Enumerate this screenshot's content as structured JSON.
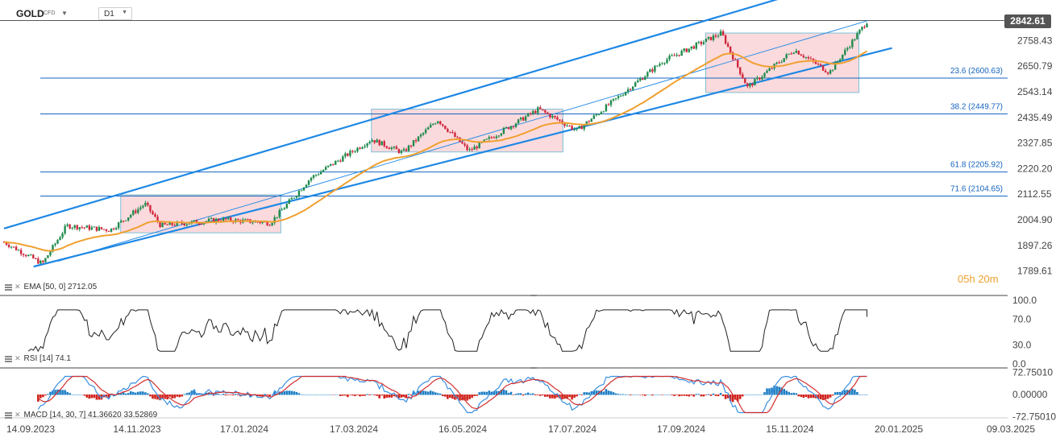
{
  "header": {
    "symbol": "GOLD",
    "instrument_type": "CFD",
    "timeframe": "D1"
  },
  "last_price": "2842.61",
  "countdown": {
    "hours": "05",
    "h": "h",
    "minutes": "20",
    "m": "m"
  },
  "chart_data": [
    {
      "type": "candlestick",
      "symbol": "GOLD",
      "timeframe": "D1",
      "yticks": [
        2758.43,
        2650.79,
        2543.14,
        2435.49,
        2327.85,
        2220.2,
        2112.55,
        2004.9,
        1897.26,
        1789.61
      ],
      "xticks": [
        "14.09.2023",
        "14.11.2023",
        "17.01.2024",
        "17.03.2024",
        "16.05.2024",
        "17.07.2024",
        "17.09.2024",
        "15.11.2024",
        "20.01.2025",
        "09.03.2025"
      ],
      "last_price": 2842.61,
      "ohlc_close_approx": [
        [
          "2023-09-14",
          1911
        ],
        [
          "2023-10-06",
          1820
        ],
        [
          "2023-10-20",
          1980
        ],
        [
          "2023-11-14",
          1962
        ],
        [
          "2023-12-04",
          2072
        ],
        [
          "2023-12-13",
          1980
        ],
        [
          "2024-01-17",
          2006
        ],
        [
          "2024-02-14",
          1992
        ],
        [
          "2024-03-08",
          2180
        ],
        [
          "2024-04-12",
          2343
        ],
        [
          "2024-04-30",
          2287
        ],
        [
          "2024-05-20",
          2426
        ],
        [
          "2024-06-07",
          2294
        ],
        [
          "2024-07-17",
          2470
        ],
        [
          "2024-08-08",
          2380
        ],
        [
          "2024-09-26",
          2670
        ],
        [
          "2024-10-30",
          2790
        ],
        [
          "2024-11-14",
          2562
        ],
        [
          "2024-12-11",
          2720
        ],
        [
          "2024-12-31",
          2624
        ],
        [
          "2025-01-22",
          2842.61
        ]
      ],
      "ema": {
        "label": "EMA [50, 0]",
        "value": 2712.05
      },
      "fibonacci": [
        {
          "level": "23.6",
          "price": 2600.63,
          "label": "23.6 (2600.63)"
        },
        {
          "level": "38.2",
          "price": 2449.77,
          "label": "38.2 (2449.77)"
        },
        {
          "level": "61.8",
          "price": 2205.92,
          "label": "61.8 (2205.92)"
        },
        {
          "level": "71.6",
          "price": 2104.65,
          "label": "71.6 (2104.65)"
        }
      ],
      "consolidation_zones": [
        {
          "from": "2023-11-20",
          "to": "2024-02-20",
          "low": 1950,
          "high": 2110
        },
        {
          "from": "2024-04-12",
          "to": "2024-07-31",
          "low": 2290,
          "high": 2470
        },
        {
          "from": "2024-10-21",
          "to": "2025-01-17",
          "low": 2540,
          "high": 2790
        }
      ],
      "colors": {
        "bull": "#1f8b4c",
        "bear": "#d0273c",
        "ema": "#f0a030",
        "channel": "#1e88e5",
        "zone": "#f6c1c6",
        "fib": "#1565c0"
      }
    },
    {
      "type": "line",
      "indicator": "RSI",
      "label": "RSI [14]",
      "value": 74.1,
      "yticks": [
        100.0,
        70.0,
        30.0,
        0.0
      ],
      "ylim": [
        0,
        100
      ]
    },
    {
      "type": "bar+line",
      "indicator": "MACD",
      "label": "MACD [14, 30, 7]",
      "value1": 41.3662,
      "value2": 33.52869,
      "yticks": [
        72.7501,
        0.0,
        -72.7501
      ]
    }
  ],
  "labels": {
    "ema_text": "EMA [50, 0]",
    "ema_value": "2712.05",
    "rsi_text": "RSI [14]",
    "rsi_value": "74.1",
    "macd_text": "MACD [14, 30, 7]",
    "macd_v1": "41.36620",
    "macd_v2": "33.52869",
    "price_ticks": [
      "2758.43",
      "2650.79",
      "2543.14",
      "2435.49",
      "2327.85",
      "2220.20",
      "2112.55",
      "2004.90",
      "1897.26",
      "1789.61"
    ],
    "rsi_ticks": [
      "100.0",
      "70.0",
      "30.0",
      "0.0"
    ],
    "macd_ticks": [
      "72.75010",
      "0.00000",
      "-72.75010"
    ],
    "dates": [
      "14.09.2023",
      "14.11.2023",
      "17.01.2024",
      "17.03.2024",
      "16.05.2024",
      "17.07.2024",
      "17.09.2024",
      "15.11.2024",
      "20.01.2025",
      "09.03.2025"
    ],
    "fib": [
      "23.6 (2600.63)",
      "38.2 (2449.77)",
      "61.8 (2205.92)",
      "71.6 (2104.65)"
    ]
  }
}
